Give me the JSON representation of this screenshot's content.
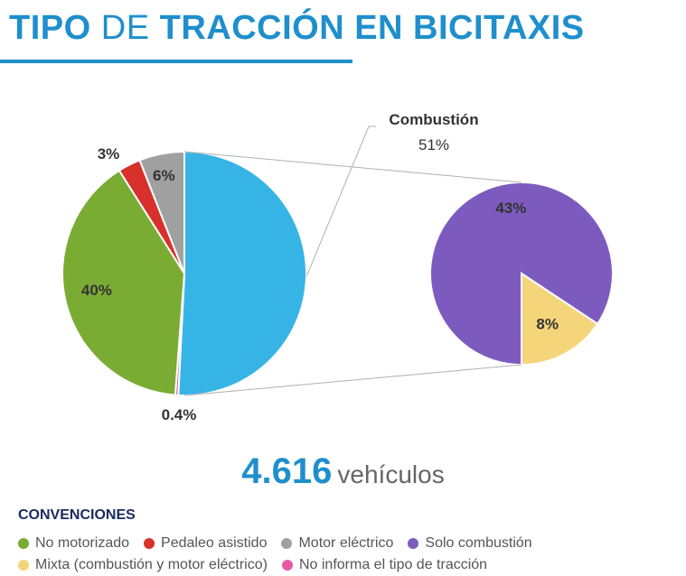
{
  "title": {
    "part1": "TIPO",
    "part2": "DE",
    "part3": "TRACCIÓN EN BICITAXIS"
  },
  "total": {
    "value": "4.616",
    "unit": "vehículos"
  },
  "legend_title": "CONVENCIONES",
  "chart_data": {
    "type": "pie",
    "title": "TIPO DE TRACCIÓN EN BICITAXIS",
    "main_pie": {
      "slices": [
        {
          "key": "combustion",
          "label": "Combustión",
          "value": 51,
          "display": "51%",
          "color": "#37b4e6"
        },
        {
          "key": "no_informa",
          "label": "No informa el tipo de tracción",
          "value": 0.4,
          "display": "0.4%",
          "color": "#e85aa6"
        },
        {
          "key": "no_motorizado",
          "label": "No motorizado",
          "value": 40,
          "display": "40%",
          "color": "#7aac34"
        },
        {
          "key": "pedaleo",
          "label": "Pedaleo asistido",
          "value": 3,
          "display": "3%",
          "color": "#d8302a"
        },
        {
          "key": "motor_electrico",
          "label": "Motor eléctrico",
          "value": 6,
          "display": "6%",
          "color": "#a0a0a0"
        }
      ]
    },
    "breakdown_of": "Combustión",
    "breakdown_pie": {
      "slices": [
        {
          "key": "solo_combustion",
          "label": "Solo combustión",
          "value": 43,
          "display": "43%",
          "color": "#7d5bbe"
        },
        {
          "key": "mixta",
          "label": "Mixta (combustión y motor eléctrico)",
          "value": 8,
          "display": "8%",
          "color": "#f5d57a"
        }
      ]
    },
    "legend": [
      {
        "label": "No motorizado",
        "color": "#7aac34"
      },
      {
        "label": "Pedaleo asistido",
        "color": "#d8302a"
      },
      {
        "label": "Motor eléctrico",
        "color": "#a0a0a0"
      },
      {
        "label": "Solo combustión",
        "color": "#7d5bbe"
      },
      {
        "label": "Mixta (combustión y motor eléctrico)",
        "color": "#f5d57a"
      },
      {
        "label": "No informa el tipo de tracción",
        "color": "#e85aa6"
      }
    ]
  }
}
